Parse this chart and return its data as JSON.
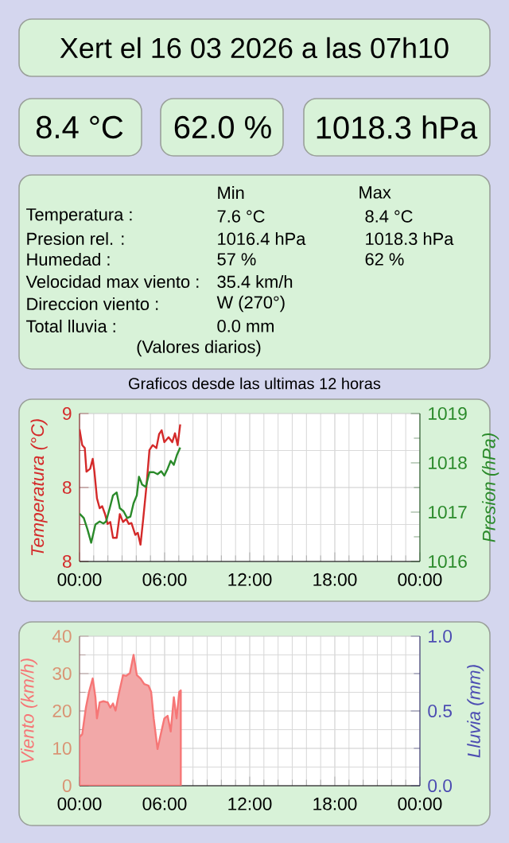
{
  "chart_data": [
    {
      "type": "other",
      "title": "Xert el 16 03 2026 a las 07h10",
      "annotations": [
        "8.4 °C",
        "62.0 %",
        "1018.3 hPa",
        "Min",
        "Max",
        "Temperatura :",
        "7.6 °C",
        "8.4 °C",
        "Presion rel. :",
        "1016.4 hPa",
        "1018.3 hPa",
        "Humedad :",
        "57 %",
        "62 %",
        "Velocidad max viento :",
        "35.4 km/h",
        "Direccion viento :",
        "W (270°)",
        "Total lluvia :",
        "0.0 mm",
        "(Valores diarios)"
      ]
    },
    {
      "type": "line",
      "title": "Graficos desde las ultimas 12 horas",
      "ylabel": "Temperatura (°C)",
      "y2label": "Presion (hPa)",
      "series": [
        {
          "color": "#d42a2a",
          "x": [
            0,
            0.19,
            0.37,
            0.49,
            0.75,
            0.93,
            1.05,
            1.23,
            1.42,
            1.6,
            1.8,
            1.98,
            2.17,
            2.36,
            2.62,
            2.84,
            3.07,
            3.29,
            3.48,
            3.66,
            3.93,
            4.11,
            4.3,
            4.49,
            4.71,
            4.93,
            5.16,
            5.42,
            5.61,
            5.79,
            5.98,
            6.28,
            6.54,
            6.73,
            6.92,
            7.1
          ],
          "values": [
            8.84,
            8.68,
            8.65,
            8.41,
            8.44,
            8.54,
            8.41,
            8.14,
            8.04,
            8.06,
            7.98,
            7.88,
            7.9,
            7.74,
            7.74,
            7.98,
            7.9,
            7.93,
            7.88,
            7.89,
            7.77,
            7.79,
            7.67,
            7.93,
            8.25,
            8.63,
            8.68,
            8.65,
            8.79,
            8.83,
            8.71,
            8.76,
            8.71,
            8.8,
            8.68,
            8.89
          ]
        },
        {
          "color": "#2a8a2a",
          "axis": "y2",
          "x": [
            0,
            0.3,
            0.56,
            0.82,
            1.12,
            1.42,
            1.68,
            1.87,
            2.13,
            2.36,
            2.62,
            2.84,
            3.1,
            3.36,
            3.59,
            3.81,
            4.04,
            4.19,
            4.41,
            4.67,
            4.93,
            5.23,
            5.5,
            5.76,
            5.98,
            6.21,
            6.43,
            6.65,
            6.88,
            7.1
          ],
          "values": [
            1016.97,
            1016.88,
            1016.65,
            1016.38,
            1016.75,
            1016.81,
            1016.77,
            1016.81,
            1017.08,
            1017.34,
            1017.4,
            1017.08,
            1017.02,
            1016.88,
            1016.91,
            1017.18,
            1017.34,
            1017.72,
            1017.56,
            1017.51,
            1017.81,
            1017.81,
            1017.77,
            1017.83,
            1017.74,
            1017.88,
            1018.04,
            1017.96,
            1018.17,
            1018.31
          ]
        }
      ],
      "xlim": [
        0,
        24
      ],
      "xticks": [
        {
          "value": 0,
          "label": "00:00"
        },
        {
          "value": 6,
          "label": "06:00"
        },
        {
          "value": 12,
          "label": "12:00"
        },
        {
          "value": 18,
          "label": "18:00"
        },
        {
          "value": 24,
          "label": "00:00"
        }
      ],
      "ylim": [
        7.5,
        9
      ],
      "yticks": [
        {
          "value": 7.5,
          "label": "8"
        },
        {
          "value": 8.25,
          "label": "8"
        },
        9
      ],
      "y2lim": [
        1016,
        1019
      ],
      "y2ticks": [
        1016,
        1017,
        1018,
        1019
      ],
      "grid": true
    },
    {
      "type": "area",
      "ylabel": "Viento (km/h)",
      "y2label": "Lluvia (mm)",
      "color": "#f2a8a8",
      "x": [
        0,
        0.19,
        0.45,
        0.67,
        0.93,
        1.12,
        1.23,
        1.42,
        1.68,
        1.98,
        2.17,
        2.36,
        2.54,
        2.8,
        3.07,
        3.29,
        3.55,
        3.81,
        4.04,
        4.3,
        4.56,
        4.86,
        5.05,
        5.23,
        5.5,
        5.68,
        5.98,
        6.21,
        6.43,
        6.65,
        6.84,
        7.03,
        7.14
      ],
      "values": [
        13,
        13.8,
        20.9,
        25.1,
        28.7,
        23.7,
        18,
        22.3,
        22.6,
        22.3,
        20.9,
        22,
        20.1,
        25.1,
        29.6,
        29.4,
        30.1,
        35,
        29.6,
        28.7,
        27.2,
        26.8,
        25.1,
        18,
        9.8,
        13,
        18,
        18.7,
        14.5,
        23.7,
        18,
        25.1,
        25.5
      ],
      "xlim": [
        0,
        24
      ],
      "xticks": [
        {
          "value": 0,
          "label": "00:00"
        },
        {
          "value": 6,
          "label": "06:00"
        },
        {
          "value": 12,
          "label": "12:00"
        },
        {
          "value": 18,
          "label": "18:00"
        },
        {
          "value": 24,
          "label": "00:00"
        }
      ],
      "ylim": [
        0,
        40
      ],
      "yticks": [
        0,
        10,
        20,
        30,
        40
      ],
      "y2lim": [
        0,
        1
      ],
      "y2ticks": [
        {
          "value": 0,
          "label": "0.0"
        },
        {
          "value": 0.5,
          "label": "0.5"
        },
        {
          "value": 1,
          "label": "1.0"
        }
      ],
      "grid": true
    }
  ]
}
